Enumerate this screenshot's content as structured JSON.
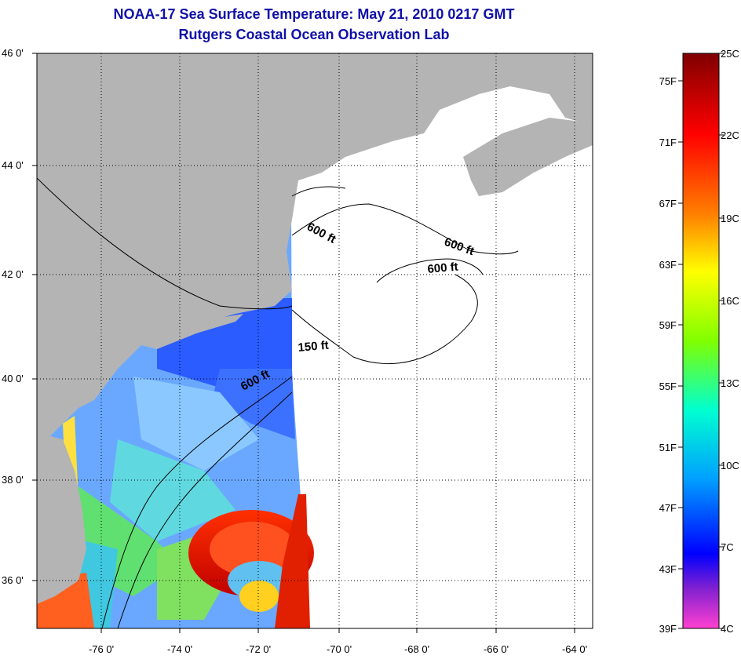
{
  "title": {
    "line1": "NOAA-17 Sea Surface Temperature:  May 21, 2010 0217 GMT",
    "line2": "Rutgers Coastal Ocean Observation Lab"
  },
  "axes": {
    "lat_ticks": [
      "46 0'",
      "44 0'",
      "42 0'",
      "40 0'",
      "38 0'",
      "36 0'"
    ],
    "lon_ticks": [
      "-76 0'",
      "-74 0'",
      "-72 0'",
      "-70 0'",
      "-68 0'",
      "-66 0'",
      "-64 0'"
    ]
  },
  "contours": [
    {
      "label": "600 ft"
    },
    {
      "label": "600 ft"
    },
    {
      "label": "600 ft"
    },
    {
      "label": "150 ft"
    },
    {
      "label": "600 ft"
    }
  ],
  "colorbar": {
    "fahrenheit": [
      "75F",
      "71F",
      "67F",
      "63F",
      "59F",
      "55F",
      "51F",
      "47F",
      "43F",
      "39F"
    ],
    "celsius": [
      "25C",
      "22C",
      "19C",
      "16C",
      "13C",
      "10C",
      "7C",
      "4C"
    ],
    "colors": [
      "#800000",
      "#ff0000",
      "#ff8000",
      "#ffff00",
      "#80ff00",
      "#00ffd0",
      "#00a0ff",
      "#0000ff",
      "#ff40d0"
    ]
  },
  "colors": {
    "title": "#1010a8",
    "land": "#b4b4b4",
    "ocean_nodata": "#ffffff"
  }
}
